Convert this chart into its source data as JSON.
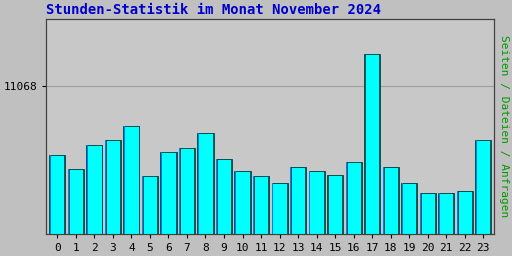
{
  "title": "Stunden-Statistik im Monat November 2024",
  "ylabel": "Seiten / Dateien / Anfragen",
  "xlabel_ticks": [
    0,
    1,
    2,
    3,
    4,
    5,
    6,
    7,
    8,
    9,
    10,
    11,
    12,
    13,
    14,
    15,
    16,
    17,
    18,
    19,
    20,
    21,
    22,
    23
  ],
  "ytick_label": "11068",
  "ytick_value": 11068,
  "bar_values": [
    10780,
    10720,
    10820,
    10840,
    10900,
    10690,
    10790,
    10810,
    10870,
    10760,
    10710,
    10690,
    10660,
    10730,
    10710,
    10695,
    10750,
    11200,
    10730,
    10660,
    10620,
    10620,
    10630,
    10840
  ],
  "bar_color_front": "#00FFFF",
  "bar_color_back": "#008B8B",
  "bar_color_side": "#007FFF",
  "background_color": "#C0C0C0",
  "plot_bg_color": "#C8C8C8",
  "title_color": "#0000CC",
  "ylabel_color": "#009900",
  "border_color": "#404040",
  "ylim_min": 10450,
  "ylim_max": 11350,
  "title_fontsize": 10,
  "ylabel_fontsize": 8,
  "tick_fontsize": 8
}
